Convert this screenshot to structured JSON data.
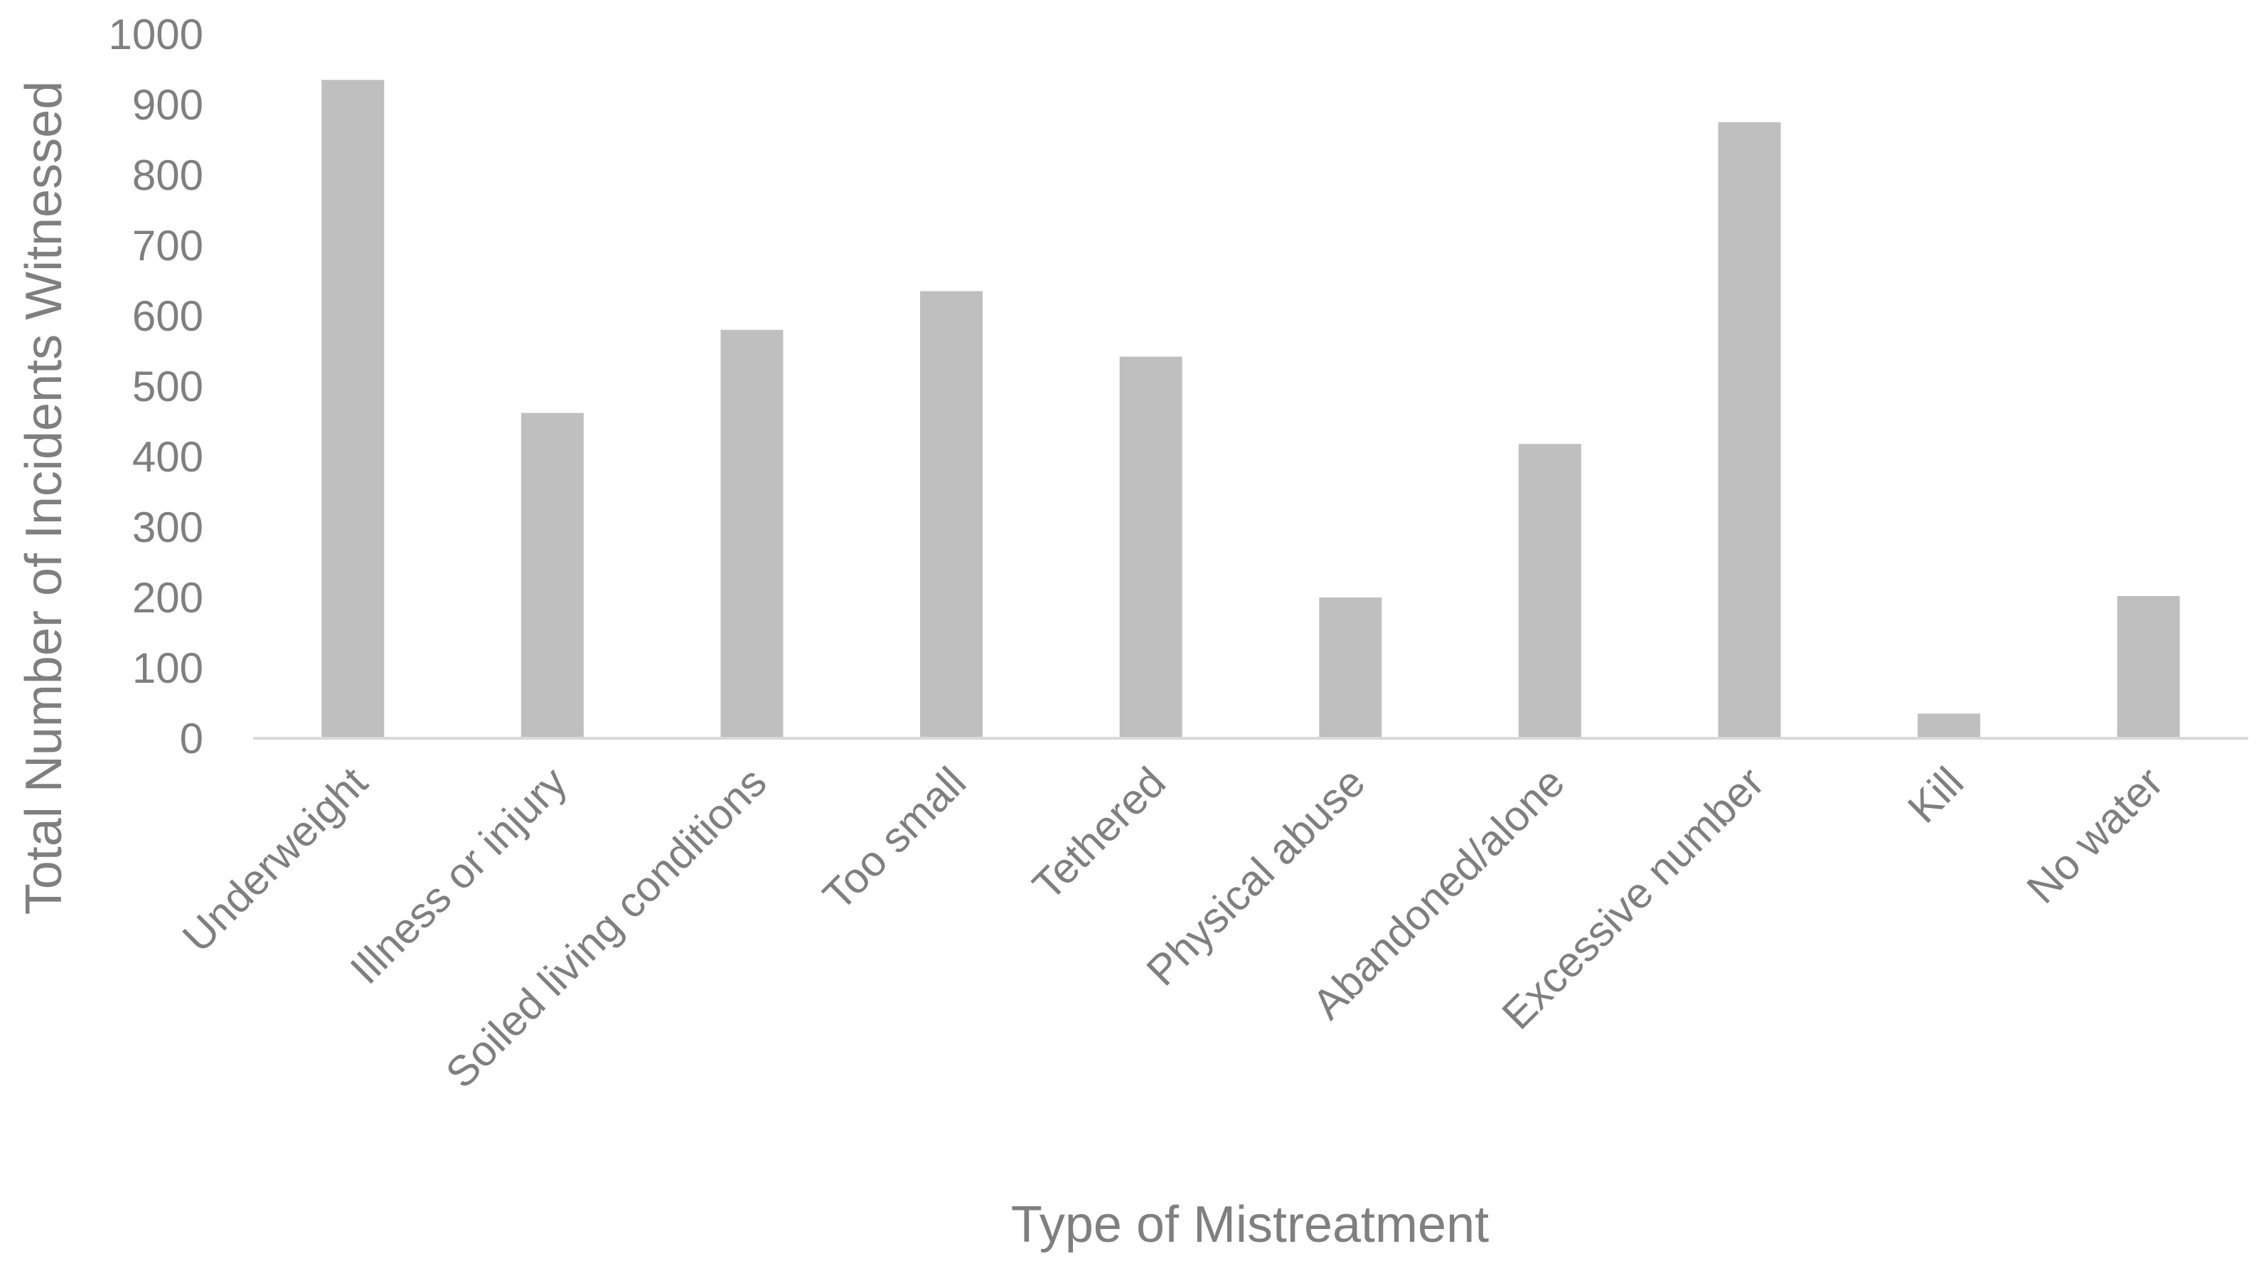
{
  "chart_data": {
    "type": "bar",
    "title": "",
    "xlabel": "Type of Mistreatment",
    "ylabel": "Total Number of Incidents Witnessed",
    "categories": [
      "Underweight",
      "Illness or injury",
      "Soiled living conditions",
      "Too small",
      "Tethered",
      "Physical abuse",
      "Abandoned/alone",
      "Excessive number",
      "Kill",
      "No water"
    ],
    "series": [
      {
        "values": [
          935,
          462,
          580,
          635,
          542,
          200,
          418,
          875,
          35,
          202
        ]
      }
    ],
    "ylim": [
      0,
      1000
    ],
    "yticks": [
      "0",
      "100",
      "200",
      "300",
      "400",
      "500",
      "600",
      "700",
      "800",
      "900",
      "1000"
    ],
    "grid": false,
    "legend": "none",
    "colors": {
      "bar": "#bfbfbf",
      "axis": "#d9d9d9",
      "text": "#7f7f7f"
    }
  }
}
